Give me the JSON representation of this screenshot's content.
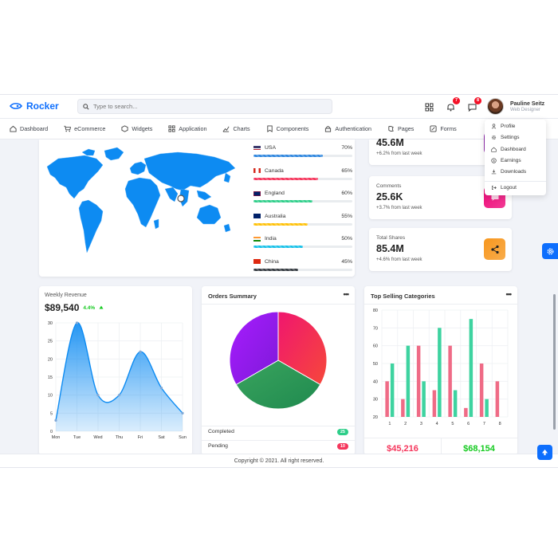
{
  "brand": {
    "name": "Rocker",
    "color": "#0d6efd"
  },
  "search": {
    "placeholder": "Type to search..."
  },
  "notifications": {
    "bell_count": "7",
    "message_count": "8"
  },
  "user": {
    "name": "Pauline Seitz",
    "role": "Web Designer"
  },
  "nav": [
    {
      "label": "Dashboard",
      "icon": "home-icon"
    },
    {
      "label": "eCommerce",
      "icon": "cart-icon"
    },
    {
      "label": "Widgets",
      "icon": "widgets-icon"
    },
    {
      "label": "Application",
      "icon": "grid-icon"
    },
    {
      "label": "Charts",
      "icon": "chart-icon"
    },
    {
      "label": "Components",
      "icon": "bookmark-icon"
    },
    {
      "label": "Authentication",
      "icon": "lock-icon"
    },
    {
      "label": "Pages",
      "icon": "pages-icon"
    },
    {
      "label": "Forms",
      "icon": "form-icon"
    }
  ],
  "user_menu": [
    {
      "label": "Profile",
      "icon": "user-icon"
    },
    {
      "label": "Settings",
      "icon": "gear-icon"
    },
    {
      "label": "Dashboard",
      "icon": "home-icon"
    },
    {
      "label": "Earnings",
      "icon": "dollar-icon"
    },
    {
      "label": "Downloads",
      "icon": "download-icon"
    },
    {
      "label": "Logout",
      "icon": "logout-icon"
    }
  ],
  "countries": [
    {
      "name": "USA",
      "pct": "70%",
      "value": 0.7,
      "color": "#2e86de"
    },
    {
      "name": "Canada",
      "pct": "65%",
      "value": 0.65,
      "color": "#f5365c"
    },
    {
      "name": "England",
      "pct": "60%",
      "value": 0.6,
      "color": "#2dce89"
    },
    {
      "name": "Australia",
      "pct": "55%",
      "value": 0.55,
      "color": "#ffc107"
    },
    {
      "name": "India",
      "pct": "50%",
      "value": 0.5,
      "color": "#17c1e8"
    },
    {
      "name": "China",
      "pct": "45%",
      "value": 0.45,
      "color": "#343a40"
    }
  ],
  "stats": [
    {
      "label": "",
      "value": "45.6M",
      "sub": "+6.2% from last week",
      "color": "#8e24aa",
      "icon": "cart-icon"
    },
    {
      "label": "Comments",
      "value": "25.6K",
      "sub": "+3.7% from last week",
      "color": "#ee0979",
      "icon": "comment-icon"
    },
    {
      "label": "Total Shares",
      "value": "85.4M",
      "sub": "+4.6% from last week",
      "color": "#f7971e",
      "icon": "share-icon"
    }
  ],
  "weekly_revenue": {
    "title": "Weekly Revenue",
    "value": "$89,540",
    "change": "4.4%",
    "change_color": "#15ca20"
  },
  "orders_summary": {
    "title": "Orders Summary",
    "dots": "•••",
    "statuses": [
      {
        "label": "Completed",
        "count": "25",
        "color": "#2dce89"
      },
      {
        "label": "Pending",
        "count": "10",
        "color": "#f5365c"
      }
    ]
  },
  "top_selling": {
    "title": "Top Selling Categories",
    "dots": "•••",
    "totals": [
      {
        "value": "$45,216",
        "color": "#f5365c"
      },
      {
        "value": "$68,154",
        "color": "#15ca20"
      }
    ]
  },
  "footer": {
    "text": "Copyright © 2021. All right reserved."
  },
  "chart_data": [
    {
      "type": "area",
      "categories": [
        "Mon",
        "Tue",
        "Wed",
        "Thu",
        "Fri",
        "Sat",
        "Sun"
      ],
      "values": [
        3,
        30,
        10,
        10,
        22,
        12,
        5
      ],
      "ylim": [
        0,
        30
      ],
      "yticks": [
        0,
        5,
        10,
        15,
        20,
        25,
        30
      ],
      "color": "#0d8bf2"
    },
    {
      "type": "pie",
      "labels": [
        "",
        "",
        ""
      ],
      "values": [
        33.33,
        33.33,
        33.33
      ],
      "colors": [
        "#f0166f",
        "#2c9a58",
        "#9b1cf2"
      ]
    },
    {
      "type": "bar",
      "categories": [
        "1",
        "2",
        "3",
        "4",
        "5",
        "6",
        "7",
        "8"
      ],
      "series": [
        {
          "values": [
            40,
            30,
            60,
            35,
            60,
            25,
            50,
            40
          ],
          "color": "#ef6b86"
        },
        {
          "values": [
            50,
            60,
            40,
            70,
            35,
            75,
            30,
            20
          ],
          "color": "#3ed3a0"
        }
      ],
      "ylim": [
        20,
        80
      ],
      "yticks": [
        20,
        30,
        40,
        50,
        60,
        70,
        80
      ]
    }
  ]
}
